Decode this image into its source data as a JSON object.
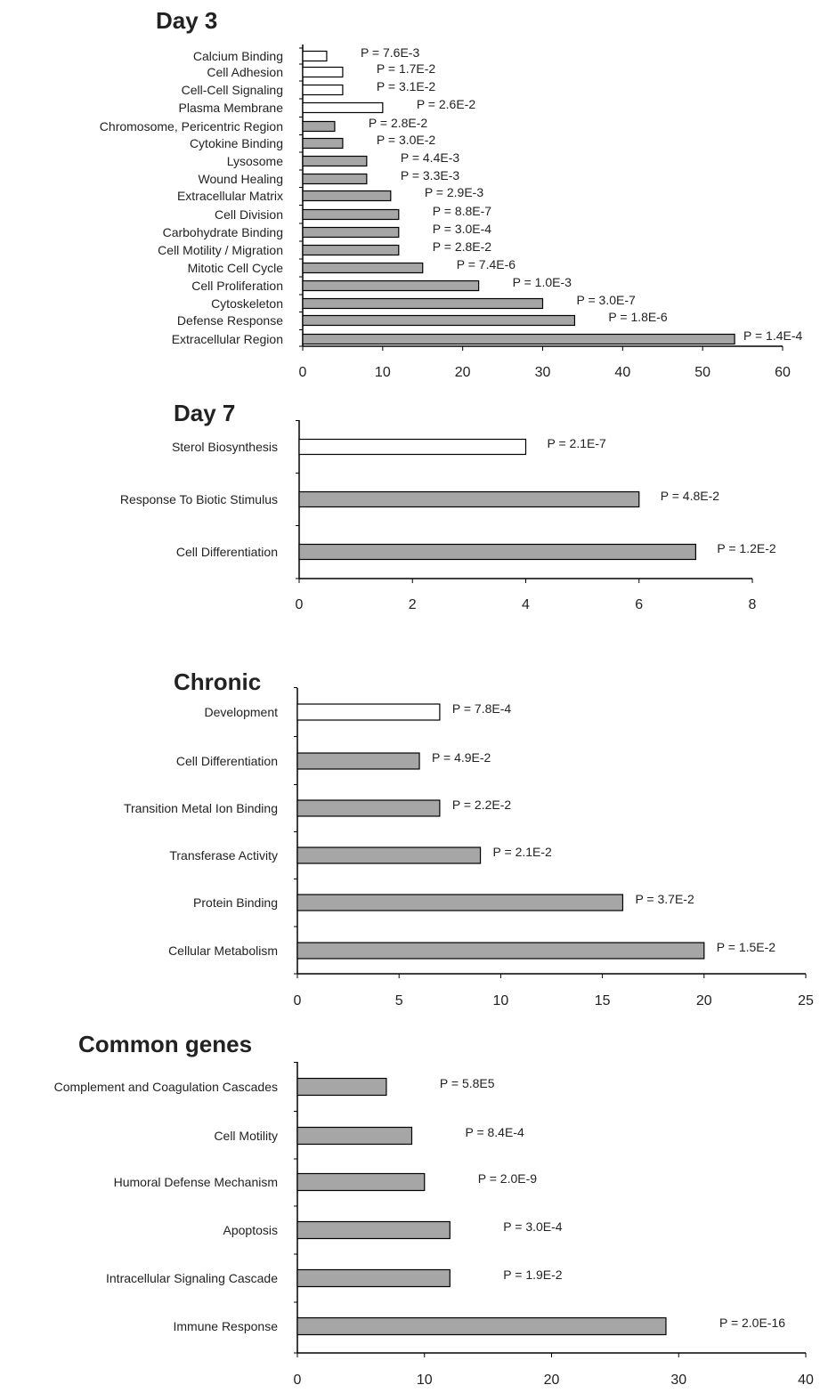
{
  "colors": {
    "filled_bar": "#a6a6a6",
    "open_bar": "#ffffff",
    "bar_stroke": "#000000",
    "axis": "#000000"
  },
  "chart_data": [
    {
      "type": "bar",
      "orientation": "horizontal",
      "title": "Day 3",
      "xlim": [
        0,
        60
      ],
      "xticks": [
        0,
        10,
        20,
        30,
        40,
        50,
        60
      ],
      "categories": [
        "Calcium Binding",
        "Cell Adhesion",
        "Cell-Cell Signaling",
        "Plasma Membrane",
        "Chromosome, Pericentric Region",
        "Cytokine Binding",
        "Lysosome",
        "Wound Healing",
        "Extracellular Matrix",
        "Cell Division",
        "Carbohydrate Binding",
        "Cell Motility / Migration",
        "Mitotic Cell Cycle",
        "Cell Proliferation",
        "Cytoskeleton",
        "Defense Response",
        "Extracellular Region"
      ],
      "values": [
        3,
        5,
        5,
        10,
        4,
        5,
        8,
        8,
        11,
        12,
        12,
        12,
        15,
        22,
        30,
        34,
        54
      ],
      "fill": [
        "open",
        "open",
        "open",
        "open",
        "filled",
        "filled",
        "filled",
        "filled",
        "filled",
        "filled",
        "filled",
        "filled",
        "filled",
        "filled",
        "filled",
        "filled",
        "filled"
      ],
      "annotations": [
        "P = 7.6E-3",
        "P = 1.7E-2",
        "P = 3.1E-2",
        "P = 2.6E-2",
        "P = 2.8E-2",
        "P = 3.0E-2",
        "P = 4.4E-3",
        "P = 3.3E-3",
        "P = 2.9E-3",
        "P = 8.8E-7",
        "P = 3.0E-4",
        "P = 2.8E-2",
        "P = 7.4E-6",
        "P = 1.0E-3",
        "P = 3.0E-7",
        "P = 1.8E-6",
        "P = 1.4E-4"
      ],
      "grid": false,
      "legend": "none"
    },
    {
      "type": "bar",
      "orientation": "horizontal",
      "title": "Day 7",
      "xlim": [
        0,
        8
      ],
      "xticks": [
        0,
        2,
        4,
        6,
        8
      ],
      "categories": [
        "Sterol Biosynthesis",
        "Response To Biotic Stimulus",
        "Cell Differentiation"
      ],
      "values": [
        4,
        6,
        7
      ],
      "fill": [
        "open",
        "filled",
        "filled"
      ],
      "annotations": [
        "P = 2.1E-7",
        "P = 4.8E-2",
        "P = 1.2E-2"
      ],
      "grid": false,
      "legend": "none"
    },
    {
      "type": "bar",
      "orientation": "horizontal",
      "title": "Chronic",
      "xlim": [
        0,
        25
      ],
      "xticks": [
        0,
        5,
        10,
        15,
        20,
        25
      ],
      "categories": [
        "Development",
        "Cell Differentiation",
        "Transition Metal Ion Binding",
        "Transferase Activity",
        "Protein Binding",
        "Cellular Metabolism"
      ],
      "values": [
        7,
        6,
        7,
        9,
        16,
        20
      ],
      "fill": [
        "open",
        "filled",
        "filled",
        "filled",
        "filled",
        "filled"
      ],
      "annotations": [
        "P = 7.8E-4",
        "P = 4.9E-2",
        "P = 2.2E-2",
        "P = 2.1E-2",
        "P = 3.7E-2",
        "P = 1.5E-2"
      ],
      "grid": false,
      "legend": "none"
    },
    {
      "type": "bar",
      "orientation": "horizontal",
      "title": "Common genes",
      "xlim": [
        0,
        40
      ],
      "xticks": [
        0,
        10,
        20,
        30,
        40
      ],
      "categories": [
        "Complement and Coagulation Cascades",
        "Cell Motility",
        "Humoral Defense Mechanism",
        "Apoptosis",
        "Intracellular Signaling Cascade",
        "Immune Response"
      ],
      "values": [
        7,
        9,
        10,
        12,
        12,
        29
      ],
      "fill": [
        "filled",
        "filled",
        "filled",
        "filled",
        "filled",
        "filled"
      ],
      "annotations": [
        "P = 5.8E5",
        "P = 8.4E-4",
        "P = 2.0E-9",
        "P = 3.0E-4",
        "P = 1.9E-2",
        "P = 2.0E-16"
      ],
      "grid": false,
      "legend": "none"
    }
  ]
}
